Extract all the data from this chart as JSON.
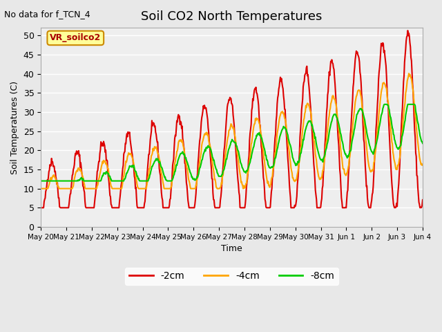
{
  "title": "Soil CO2 North Temperatures",
  "subtitle": "No data for f_TCN_4",
  "xlabel": "Time",
  "ylabel": "Soil Temperatures (C)",
  "ylim": [
    0,
    52
  ],
  "yticks": [
    0,
    5,
    10,
    15,
    20,
    25,
    30,
    35,
    40,
    45,
    50
  ],
  "x_labels": [
    "May 20",
    "May 21",
    "May 22",
    "May 23",
    "May 24",
    "May 25",
    "May 26",
    "May 27",
    "May 28",
    "May 29",
    "May 30",
    "May 31",
    "Jun 1",
    "Jun 2",
    "Jun 3",
    "Jun 4"
  ],
  "colors": {
    "2cm": "#dd0000",
    "4cm": "#ffa500",
    "8cm": "#00cc00"
  },
  "legend_labels": [
    "-2cm",
    "-4cm",
    "-8cm"
  ],
  "legend_box_color": "#ffff99",
  "legend_box_edge": "#cc8800",
  "box_label": "VR_soilco2",
  "background_color": "#e8e8e8",
  "plot_bg_color": "#eeeeee",
  "grid_color": "#ffffff",
  "linewidth": 1.5
}
